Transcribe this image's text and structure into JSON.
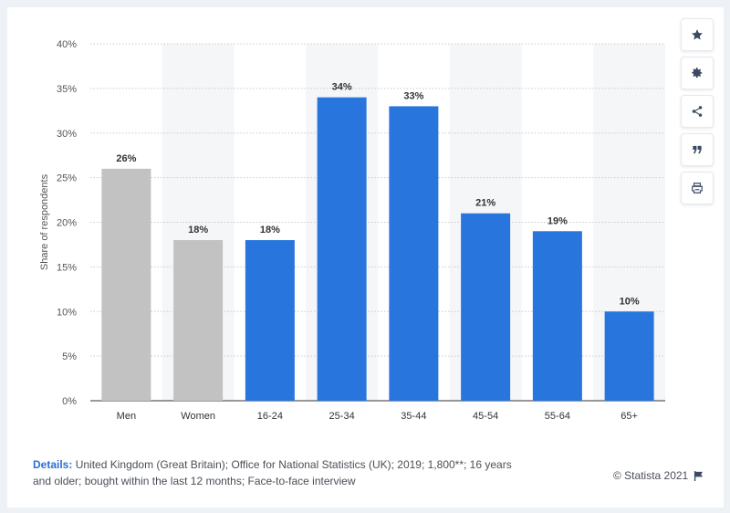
{
  "chart_data": {
    "type": "bar",
    "categories": [
      "Men",
      "Women",
      "16-24",
      "25-34",
      "35-44",
      "45-54",
      "55-64",
      "65+"
    ],
    "values": [
      26,
      18,
      18,
      34,
      33,
      21,
      19,
      10
    ],
    "value_labels": [
      "26%",
      "18%",
      "18%",
      "34%",
      "33%",
      "21%",
      "19%",
      "10%"
    ],
    "bar_colors": [
      "#c2c2c2",
      "#c2c2c2",
      "#2876dd",
      "#2876dd",
      "#2876dd",
      "#2876dd",
      "#2876dd",
      "#2876dd"
    ],
    "ylabel": "Share of respondents",
    "xlabel": "",
    "ylim": [
      0,
      40
    ],
    "yticks": [
      0,
      5,
      10,
      15,
      20,
      25,
      30,
      35,
      40
    ],
    "ytick_labels": [
      "0%",
      "5%",
      "10%",
      "15%",
      "20%",
      "25%",
      "30%",
      "35%",
      "40%"
    ],
    "grid": true
  },
  "details": {
    "label": "Details:",
    "text": "United Kingdom (Great Britain); Office for National Statistics (UK); 2019; 1,800**; 16 years and older; bought within the last 12 months; Face-to-face interview"
  },
  "credit": {
    "text": "© Statista 2021"
  },
  "toolbar": {
    "icons": [
      "star-icon",
      "gear-icon",
      "share-icon",
      "quote-icon",
      "print-icon"
    ]
  },
  "colors": {
    "accent": "#2876dd",
    "gray_bar": "#c2c2c2",
    "label_text": "#333333",
    "axis_text": "#555555"
  }
}
